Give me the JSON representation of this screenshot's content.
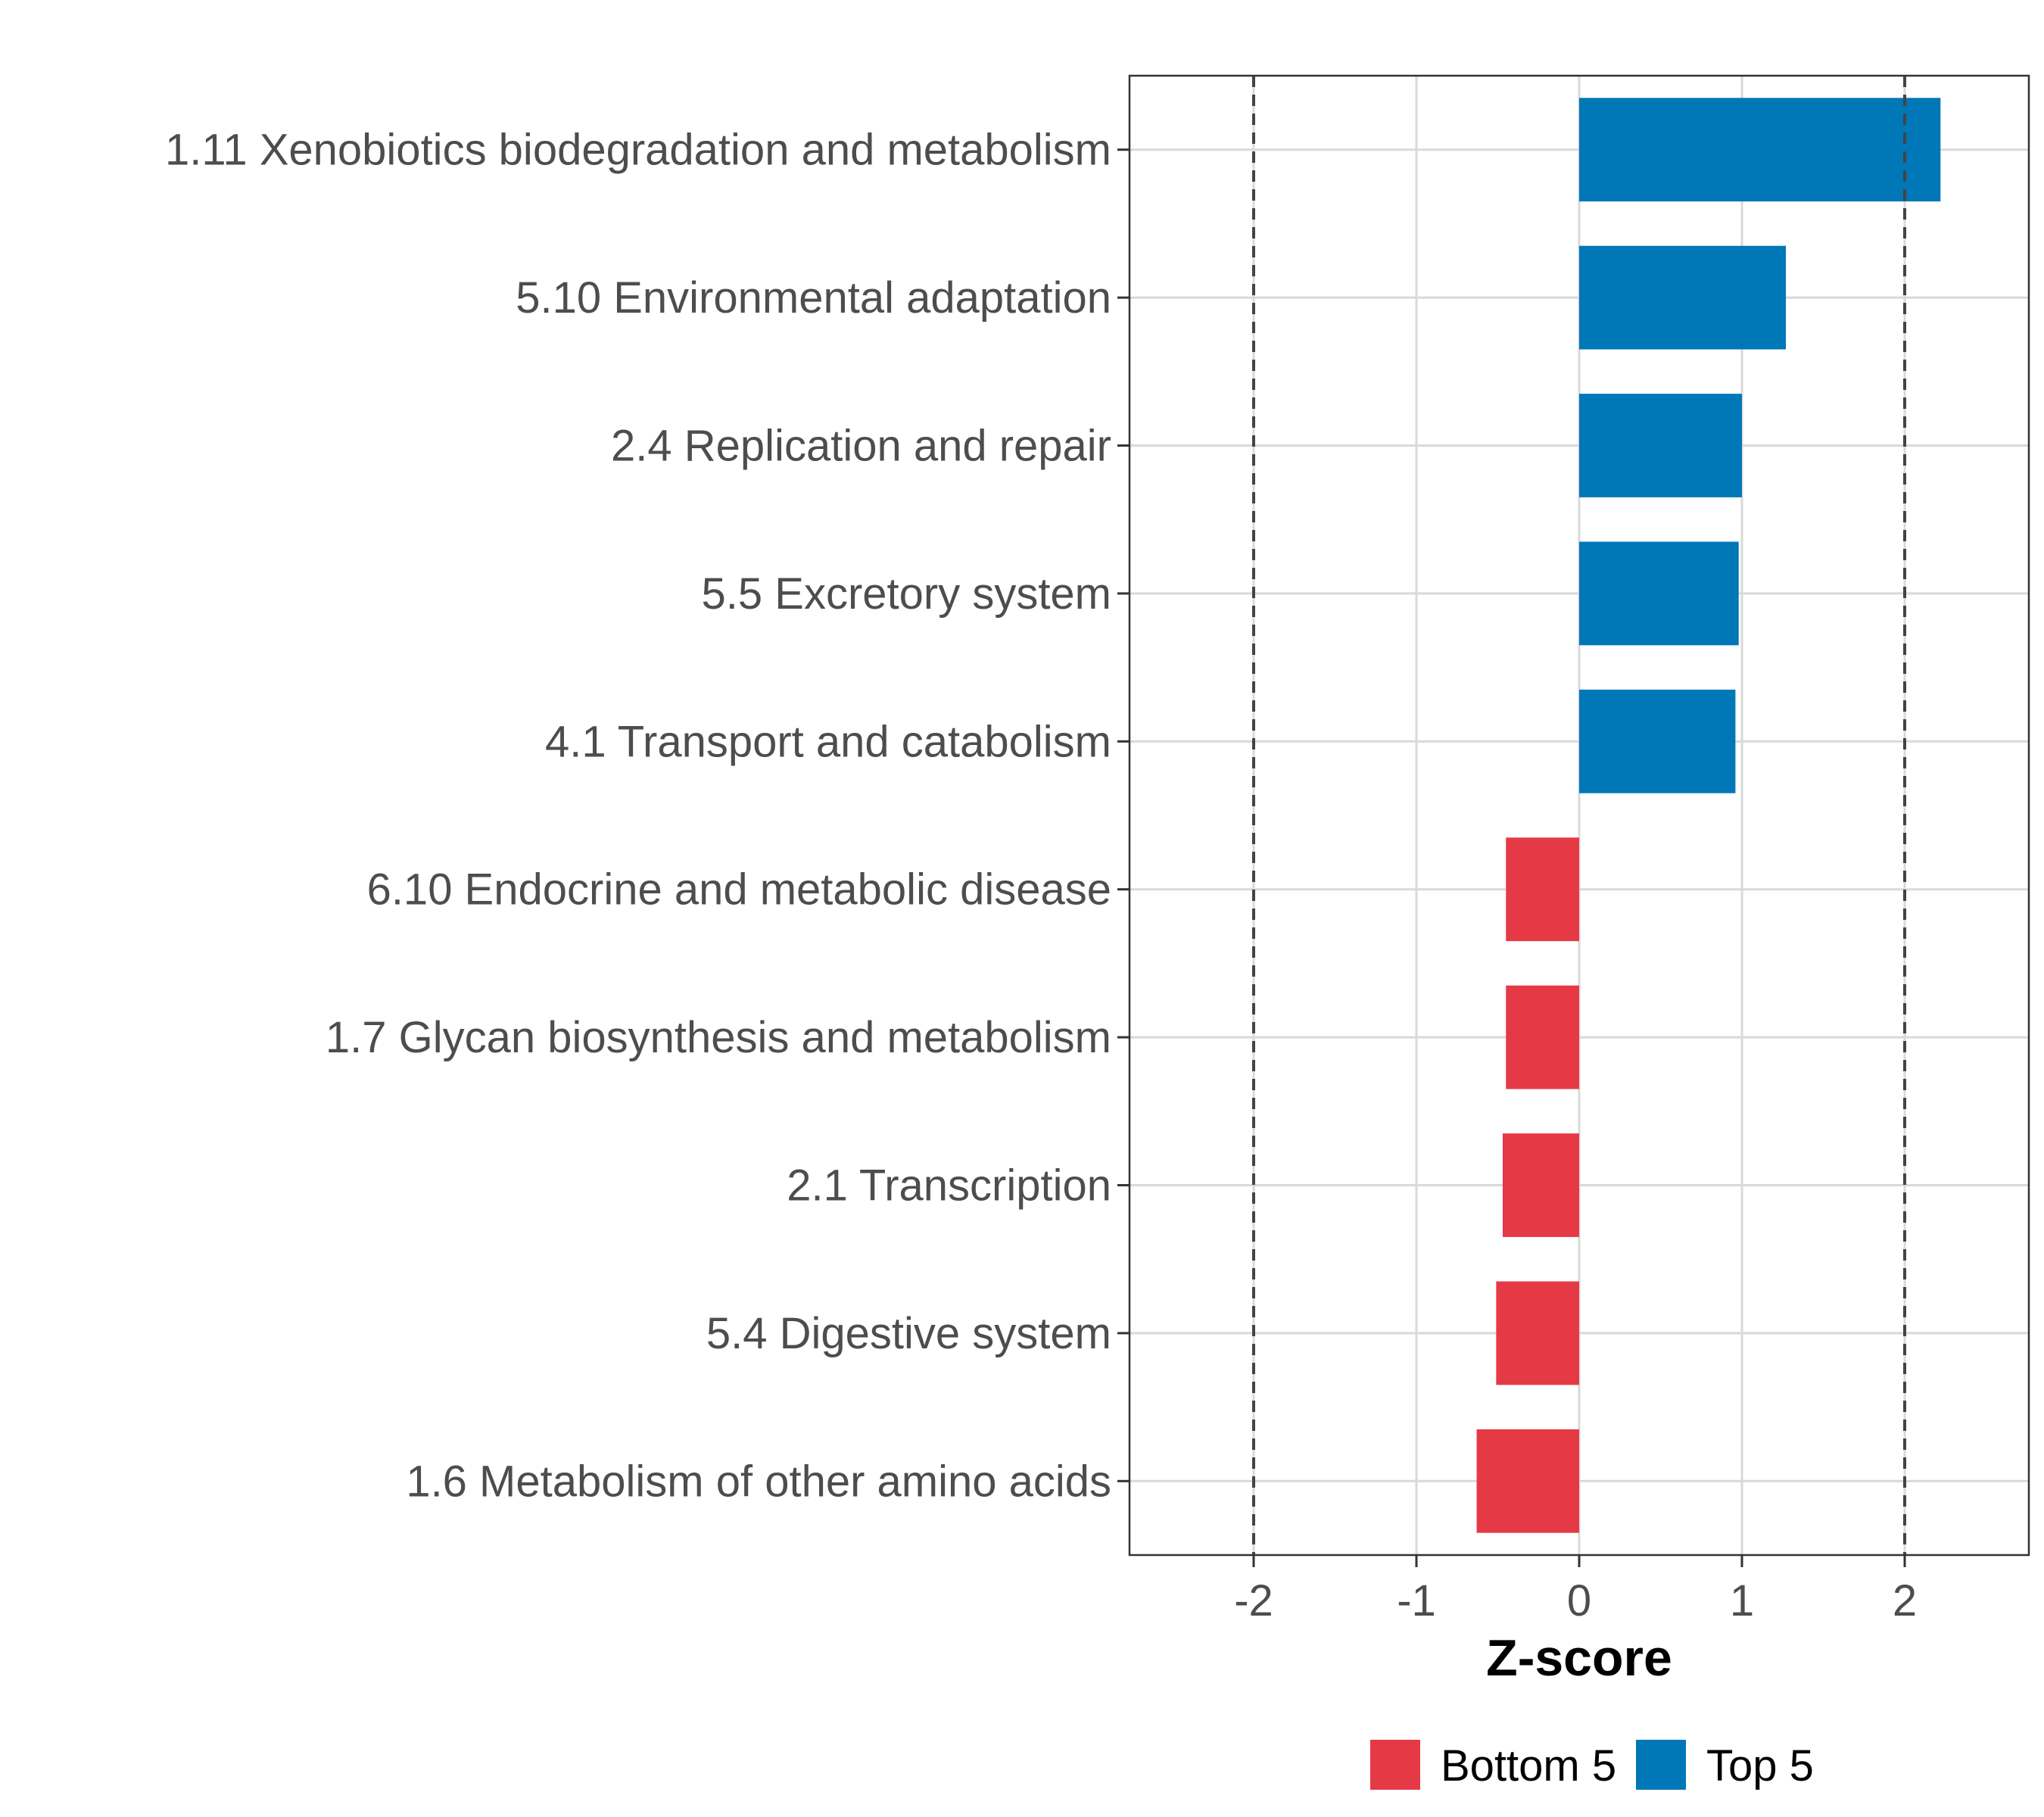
{
  "chart_data": {
    "type": "bar",
    "orientation": "horizontal",
    "title": "",
    "xlabel": "Z-score",
    "ylabel": "",
    "xlim": [
      -2.77,
      2.77
    ],
    "xticks": [
      -2,
      -1,
      0,
      1,
      2
    ],
    "xtick_labels": [
      "-2",
      "-1",
      "0",
      "1",
      "2"
    ],
    "reference_lines": [
      -2,
      2
    ],
    "grid": true,
    "legend_position": "bottom",
    "categories": [
      "1.11 Xenobiotics biodegradation and metabolism",
      "5.10 Environmental adaptation",
      "2.4 Replication and repair",
      "5.5 Excretory system",
      "4.1 Transport and catabolism",
      "6.10 Endocrine and metabolic disease",
      "1.7 Glycan biosynthesis and metabolism",
      "2.1 Transcription",
      "5.4 Digestive system",
      "1.6 Metabolism of other amino acids"
    ],
    "values": [
      2.22,
      1.27,
      1.0,
      0.98,
      0.96,
      -0.45,
      -0.45,
      -0.47,
      -0.51,
      -0.63
    ],
    "groups": [
      "Top 5",
      "Top 5",
      "Top 5",
      "Top 5",
      "Top 5",
      "Bottom 5",
      "Bottom 5",
      "Bottom 5",
      "Bottom 5",
      "Bottom 5"
    ],
    "legend": [
      {
        "name": "Bottom 5",
        "color": "#E63946"
      },
      {
        "name": "Top 5",
        "color": "#0077B6"
      }
    ]
  }
}
